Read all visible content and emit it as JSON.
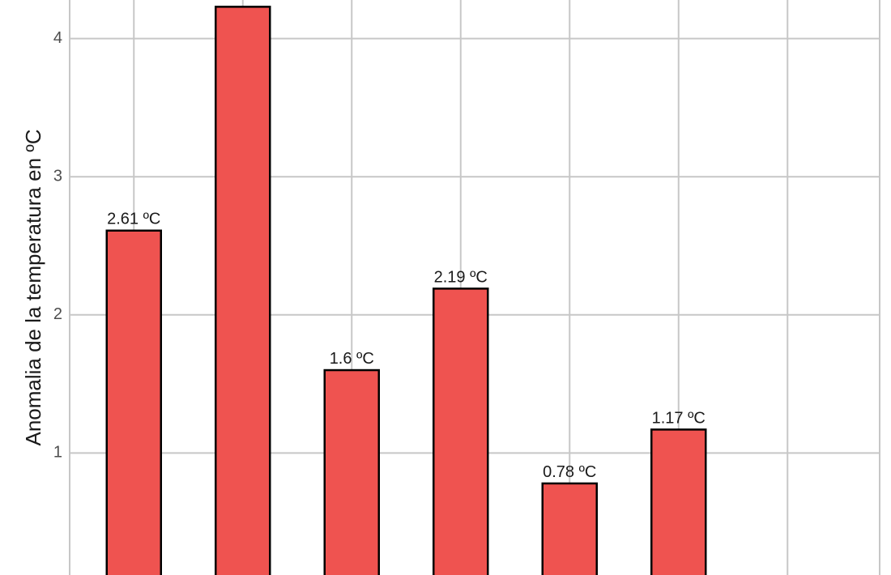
{
  "chart_data": {
    "type": "bar",
    "ylabel": "Anomalia de la temperatura en ºC",
    "ylim": [
      0,
      4.28
    ],
    "yticks": [
      1,
      2,
      3,
      4
    ],
    "grid": true,
    "bar_color": "#EF5350",
    "bar_stroke": "#000000",
    "values": [
      2.61,
      4.23,
      1.6,
      2.19,
      0.78,
      1.17
    ],
    "data_labels": [
      "2.61 ºC",
      "",
      "1.6 ºC",
      "2.19 ºC",
      "0.78 ºC",
      "1.17 ºC"
    ]
  }
}
